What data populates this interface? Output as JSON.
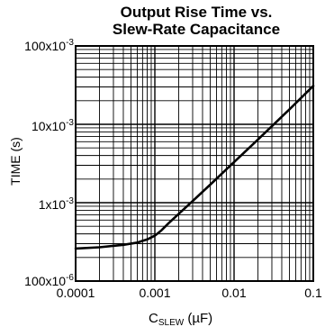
{
  "chart_data": {
    "type": "line",
    "title_line1": "Output Rise Time vs.",
    "title_line2": "Slew-Rate Capacitance",
    "xlabel_main": "C",
    "xlabel_sub": "SLEW",
    "xlabel_unit": " (µF)",
    "ylabel": "TIME (s)",
    "x_scale": "log",
    "y_scale": "log",
    "xlim": [
      0.0001,
      0.1
    ],
    "ylim": [
      0.0001,
      0.1
    ],
    "grid": true,
    "x_tick_values": [
      0.0001,
      0.001,
      0.01,
      0.1
    ],
    "x_tick_labels": [
      "0.0001",
      "0.001",
      "0.01",
      "0.1"
    ],
    "y_tick_values": [
      0.0001,
      0.001,
      0.01,
      0.1
    ],
    "y_tick_labels": [
      {
        "base": "100x10",
        "exp": "-6"
      },
      {
        "base": "1x10",
        "exp": "-3"
      },
      {
        "base": "10x10",
        "exp": "-3"
      },
      {
        "base": "100x10",
        "exp": "-3"
      }
    ],
    "series": [
      {
        "x": [
          0.0001,
          0.0002,
          0.0004,
          0.0006,
          0.0008,
          0.001,
          0.0012,
          0.0015,
          0.002,
          0.003,
          0.005,
          0.01,
          0.02,
          0.05,
          0.1
        ],
        "y": [
          0.00026,
          0.00027,
          0.00029,
          0.00031,
          0.00034,
          0.00038,
          0.00044,
          0.00055,
          0.00072,
          0.00105,
          0.0017,
          0.0033,
          0.0064,
          0.0155,
          0.031
        ]
      }
    ]
  }
}
